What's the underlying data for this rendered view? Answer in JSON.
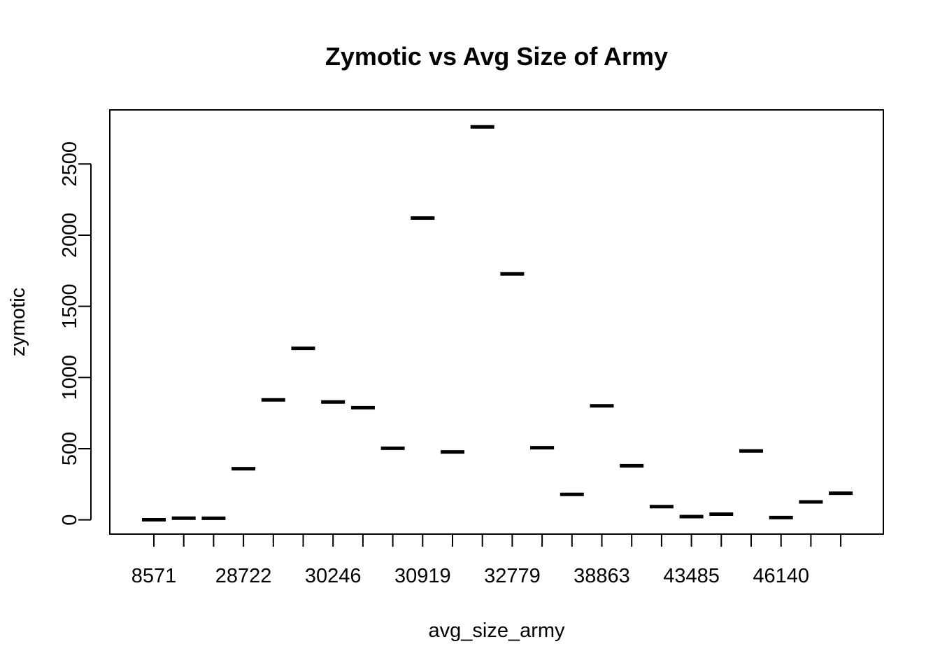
{
  "chart_data": {
    "type": "boxplot",
    "title": "Zymotic vs Avg Size of Army",
    "xlabel": "avg_size_army",
    "ylabel": "zymotic",
    "categories": [
      "8571",
      "",
      "",
      "28722",
      "",
      "",
      "30246",
      "",
      "",
      "30919",
      "",
      "",
      "32779",
      "",
      "",
      "38863",
      "",
      "",
      "43485",
      "",
      "",
      "46140",
      "",
      ""
    ],
    "x_tick_labels": [
      "8571",
      "28722",
      "30246",
      "30919",
      "32779",
      "38863",
      "43485",
      "46140"
    ],
    "values": [
      1,
      12,
      11,
      359,
      843,
      1205,
      828,
      788,
      503,
      2120,
      477,
      2761,
      1728,
      507,
      179,
      801,
      380,
      93,
      23,
      40,
      484,
      16,
      126,
      187
    ],
    "ylim": [
      -100,
      2880
    ],
    "y_ticks": [
      0,
      500,
      1000,
      1500,
      2000,
      2500
    ],
    "grid": false
  }
}
